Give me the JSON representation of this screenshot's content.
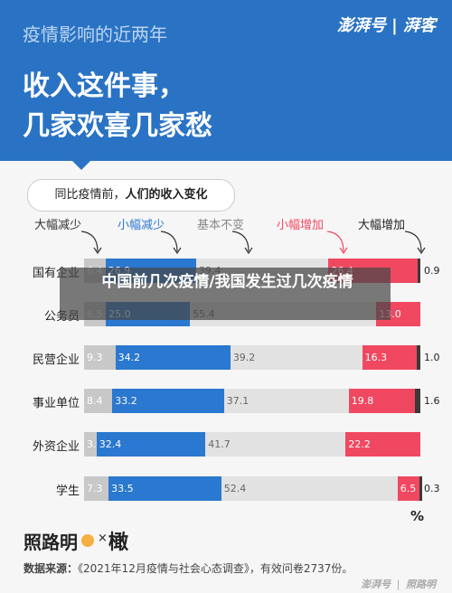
{
  "header": {
    "subtitle": "疫情影响的近两年",
    "title_line1": "收入这件事，",
    "title_line2": "几家欢喜几家愁",
    "logo": "澎湃号 | 湃客"
  },
  "overlay": {
    "text": "中国前几次疫情/我国发生过几次疫情"
  },
  "chart_data": {
    "type": "bar",
    "stacked": true,
    "orientation": "horizontal",
    "title_plain": "同比疫情前，",
    "title_bold": "人们的收入变化",
    "unit": "%",
    "categories": [
      "国有企业",
      "公务员",
      "民营企业",
      "事业单位",
      "外资企业",
      "学生"
    ],
    "series": [
      {
        "name": "大幅减少",
        "color": "#c8c8c8",
        "values": [
          6.4,
          6.5,
          9.3,
          8.4,
          3.7,
          7.3
        ]
      },
      {
        "name": "小幅减少",
        "color": "#2a78cf",
        "values": [
          26.9,
          25.0,
          34.2,
          33.2,
          32.4,
          33.5
        ]
      },
      {
        "name": "基本不变",
        "color": "#e2e2e2",
        "values": [
          39.4,
          55.4,
          39.2,
          37.1,
          41.7,
          52.4
        ]
      },
      {
        "name": "小幅增加",
        "color": "#f04860",
        "values": [
          26.4,
          13.0,
          16.3,
          19.8,
          22.2,
          6.5
        ]
      },
      {
        "name": "大幅增加",
        "color": "#3a3a3a",
        "values": [
          0.9,
          0.0,
          1.0,
          1.6,
          0.0,
          0.3
        ]
      }
    ],
    "value_labels": [
      [
        "6.4",
        "26.9",
        "39.4",
        "26.4",
        "0.9"
      ],
      [
        "6.5",
        "25.0",
        "55.4",
        "13.0",
        ""
      ],
      [
        "9.3",
        "34.2",
        "39.2",
        "16.3",
        "1.0"
      ],
      [
        "8.4",
        "33.2",
        "37.1",
        "19.8",
        "1.6"
      ],
      [
        "3.7",
        "32.4",
        "41.7",
        "22.2",
        ""
      ],
      [
        "7.3",
        "33.5",
        "52.4",
        "6.5",
        "0.3"
      ]
    ],
    "legend_colors": [
      "#333333",
      "#2a78cf",
      "#888888",
      "#f04860",
      "#222222"
    ]
  },
  "footer": {
    "brand_left": "照路明",
    "times": "×",
    "brand_right": "橄",
    "source_label": "数据来源：",
    "source_text": "《2021年12月疫情与社会心态调查》，有效问卷2737份。",
    "logo": "澎湃号 ❘ 照路明"
  }
}
